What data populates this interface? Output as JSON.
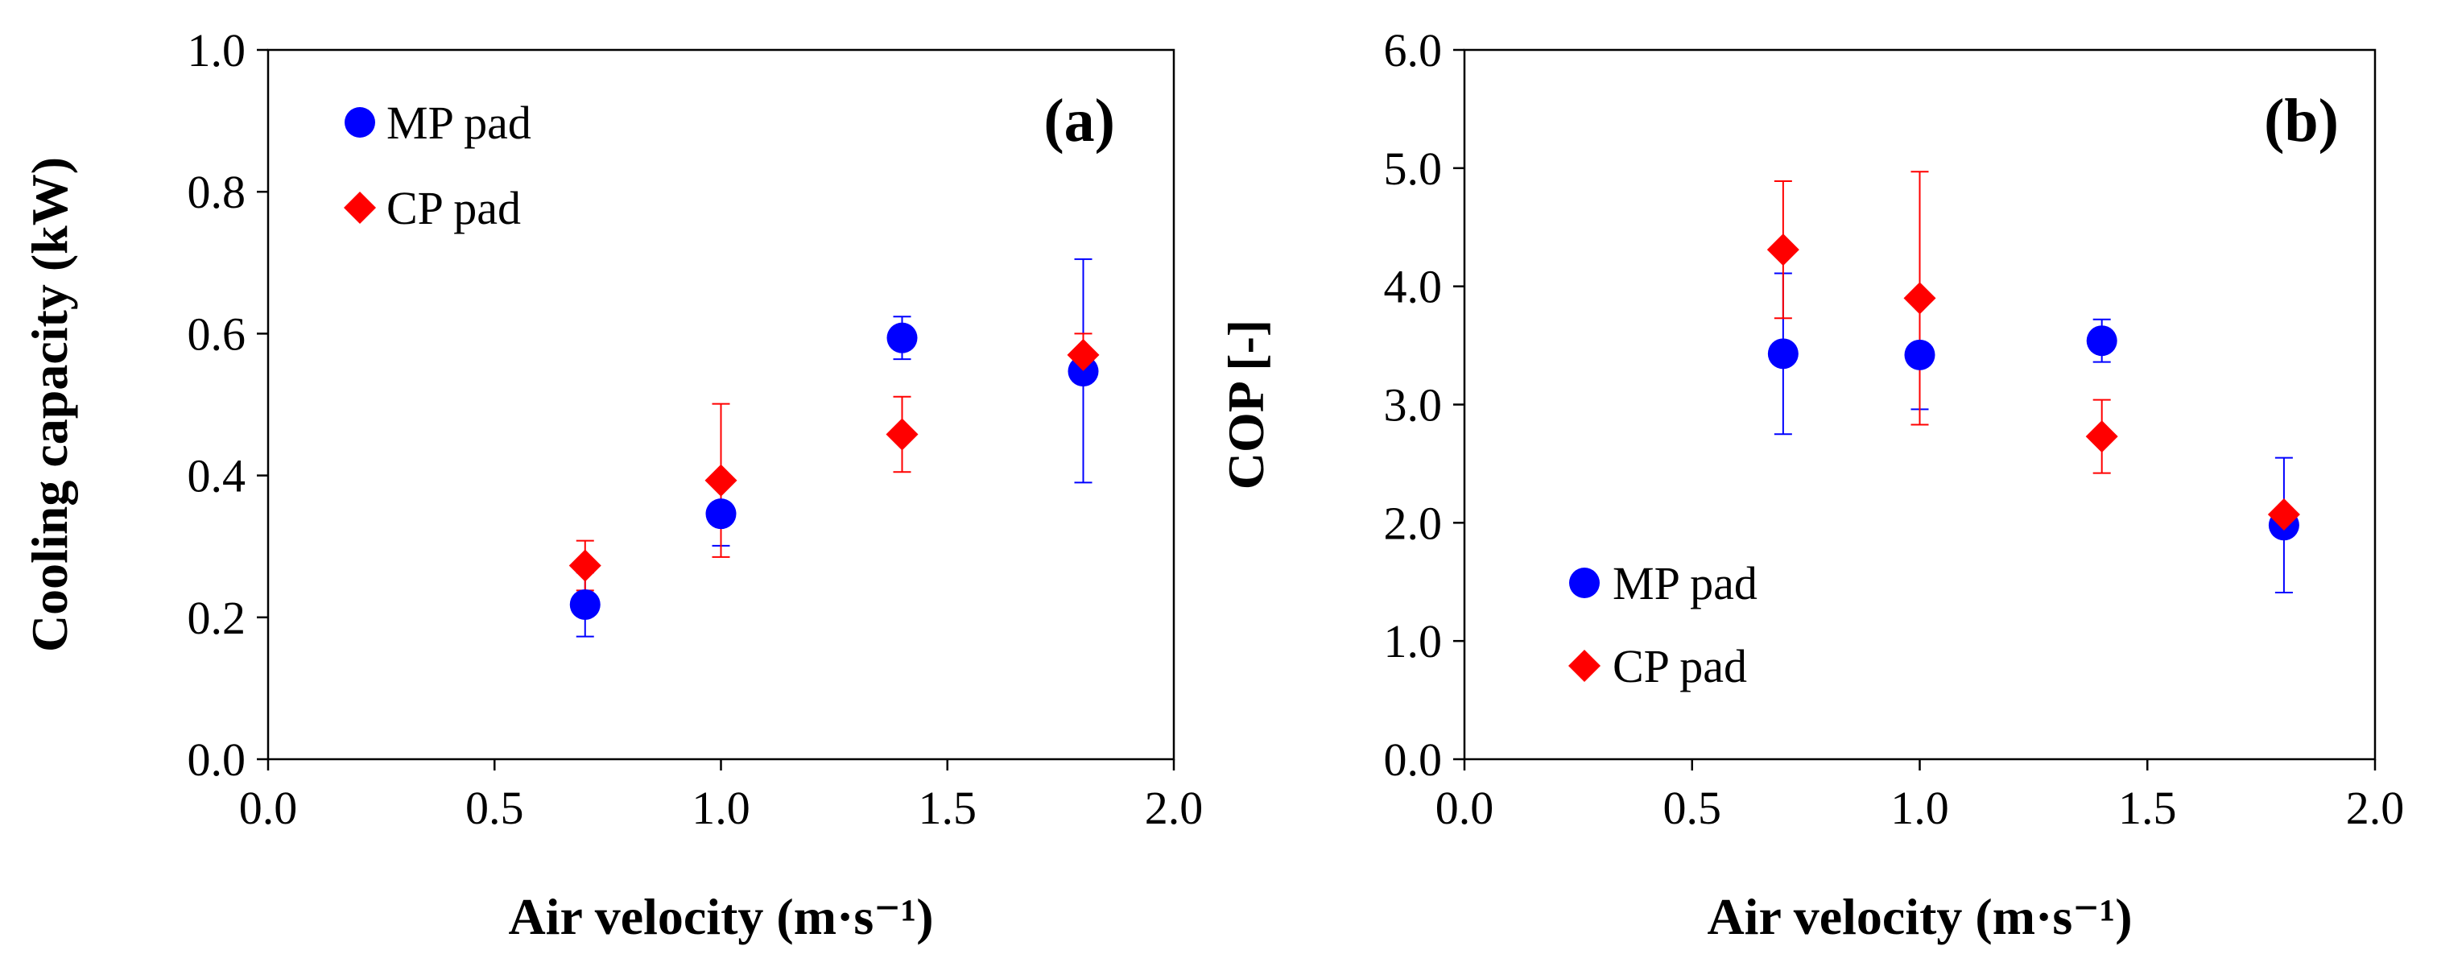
{
  "chart_data": [
    {
      "type": "scatter",
      "panel_label": "(a)",
      "xlabel": "Air velocity (m·s⁻¹)",
      "ylabel": "Cooling capacity (kW)",
      "xlim": [
        0.0,
        2.0
      ],
      "ylim": [
        0.0,
        1.0
      ],
      "xticks": [
        "0.0",
        "0.5",
        "1.0",
        "1.5",
        "2.0"
      ],
      "yticks": [
        "0.0",
        "0.2",
        "0.4",
        "0.6",
        "0.8",
        "1.0"
      ],
      "legend_position": "top-left",
      "grid": false,
      "series": [
        {
          "name": "MP pad",
          "marker": "circle",
          "color": "#0000ff",
          "x": [
            0.7,
            1.0,
            1.4,
            1.8
          ],
          "y": [
            0.218,
            0.346,
            0.594,
            0.547
          ],
          "err_low": [
            0.045,
            0.045,
            0.03,
            0.157
          ],
          "err_high": [
            0.045,
            0.045,
            0.03,
            0.158
          ]
        },
        {
          "name": "CP pad",
          "marker": "diamond",
          "color": "#ff0000",
          "x": [
            0.7,
            1.0,
            1.4,
            1.8
          ],
          "y": [
            0.273,
            0.393,
            0.458,
            0.57
          ],
          "err_low": [
            0.035,
            0.108,
            0.053,
            0.03
          ],
          "err_high": [
            0.035,
            0.108,
            0.053,
            0.03
          ]
        }
      ]
    },
    {
      "type": "scatter",
      "panel_label": "(b)",
      "xlabel": "Air velocity (m·s⁻¹)",
      "ylabel": "COP [-]",
      "xlim": [
        0.0,
        2.0
      ],
      "ylim": [
        0.0,
        6.0
      ],
      "xticks": [
        "0.0",
        "0.5",
        "1.0",
        "1.5",
        "2.0"
      ],
      "yticks": [
        "0.0",
        "1.0",
        "2.0",
        "3.0",
        "4.0",
        "5.0",
        "6.0"
      ],
      "legend_position": "bottom-left",
      "grid": false,
      "series": [
        {
          "name": "MP pad",
          "marker": "circle",
          "color": "#0000ff",
          "x": [
            0.7,
            1.0,
            1.4,
            1.8
          ],
          "y": [
            3.43,
            3.42,
            3.54,
            1.98
          ],
          "err_low": [
            0.68,
            0.46,
            0.18,
            0.57
          ],
          "err_high": [
            0.68,
            0.46,
            0.18,
            0.57
          ]
        },
        {
          "name": "CP pad",
          "marker": "diamond",
          "color": "#ff0000",
          "x": [
            0.7,
            1.0,
            1.4,
            1.8
          ],
          "y": [
            4.31,
            3.9,
            2.73,
            2.07
          ],
          "err_low": [
            0.58,
            1.07,
            0.31,
            0.04
          ],
          "err_high": [
            0.58,
            1.07,
            0.31,
            0.04
          ]
        }
      ]
    }
  ]
}
